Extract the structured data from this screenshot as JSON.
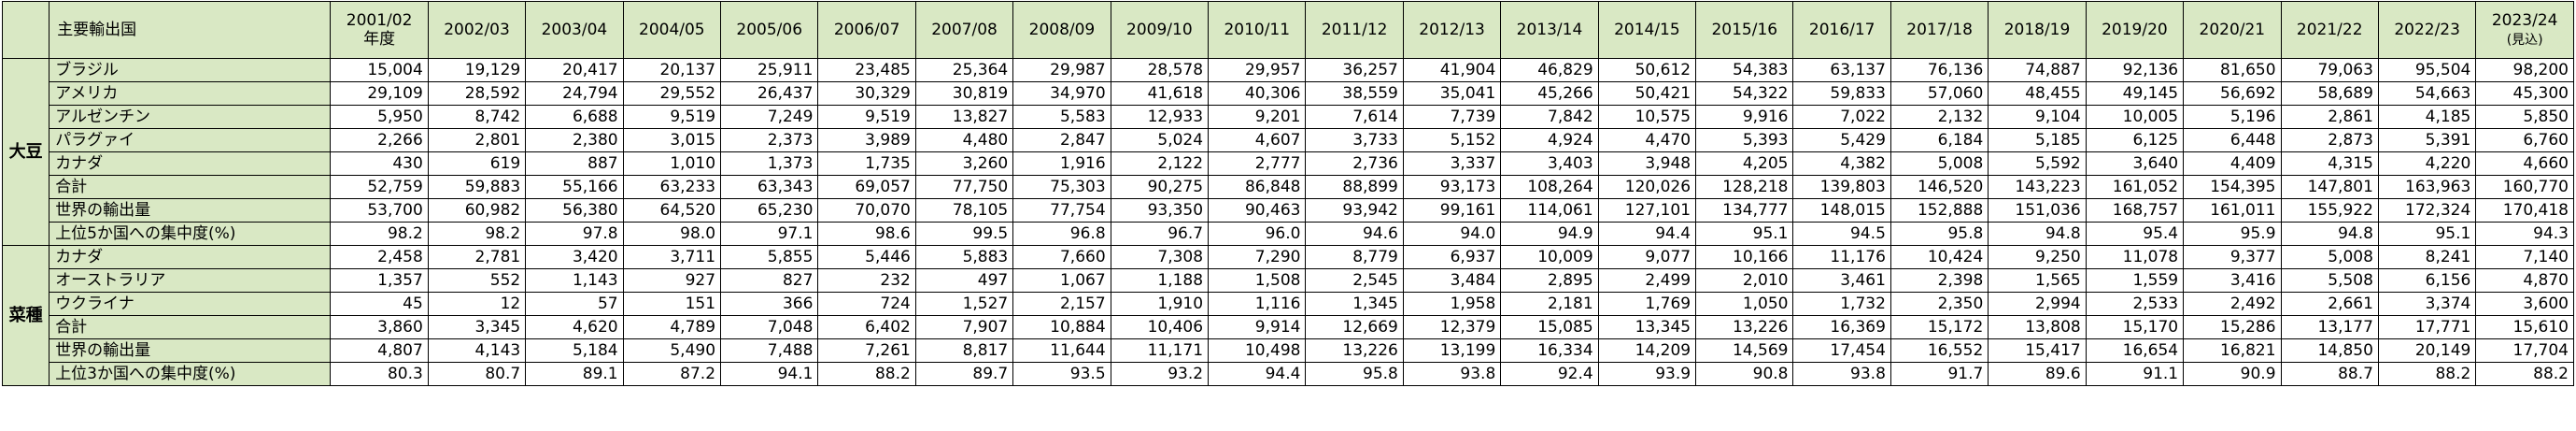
{
  "header": {
    "corner": "",
    "label": "主要輸出国",
    "years": [
      {
        "line1": "2001/02",
        "line2": "年度"
      },
      {
        "line1": "2002/03",
        "line2": ""
      },
      {
        "line1": "2003/04",
        "line2": ""
      },
      {
        "line1": "2004/05",
        "line2": ""
      },
      {
        "line1": "2005/06",
        "line2": ""
      },
      {
        "line1": "2006/07",
        "line2": ""
      },
      {
        "line1": "2007/08",
        "line2": ""
      },
      {
        "line1": "2008/09",
        "line2": ""
      },
      {
        "line1": "2009/10",
        "line2": ""
      },
      {
        "line1": "2010/11",
        "line2": ""
      },
      {
        "line1": "2011/12",
        "line2": ""
      },
      {
        "line1": "2012/13",
        "line2": ""
      },
      {
        "line1": "2013/14",
        "line2": ""
      },
      {
        "line1": "2014/15",
        "line2": ""
      },
      {
        "line1": "2015/16",
        "line2": ""
      },
      {
        "line1": "2016/17",
        "line2": ""
      },
      {
        "line1": "2017/18",
        "line2": ""
      },
      {
        "line1": "2018/19",
        "line2": ""
      },
      {
        "line1": "2019/20",
        "line2": ""
      },
      {
        "line1": "2020/21",
        "line2": ""
      },
      {
        "line1": "2021/22",
        "line2": ""
      },
      {
        "line1": "2022/23",
        "line2": ""
      },
      {
        "line1": "2023/24",
        "line2": "(見込)"
      }
    ]
  },
  "sections": [
    {
      "category": "大豆",
      "rows": [
        {
          "label": "ブラジル",
          "values": [
            "15,004",
            "19,129",
            "20,417",
            "20,137",
            "25,911",
            "23,485",
            "25,364",
            "29,987",
            "28,578",
            "29,957",
            "36,257",
            "41,904",
            "46,829",
            "50,612",
            "54,383",
            "63,137",
            "76,136",
            "74,887",
            "92,136",
            "81,650",
            "79,063",
            "95,504",
            "98,200"
          ]
        },
        {
          "label": "アメリカ",
          "values": [
            "29,109",
            "28,592",
            "24,794",
            "29,552",
            "26,437",
            "30,329",
            "30,819",
            "34,970",
            "41,618",
            "40,306",
            "38,559",
            "35,041",
            "45,266",
            "50,421",
            "54,322",
            "59,833",
            "57,060",
            "48,455",
            "49,145",
            "56,692",
            "58,689",
            "54,663",
            "45,300"
          ]
        },
        {
          "label": "アルゼンチン",
          "values": [
            "5,950",
            "8,742",
            "6,688",
            "9,519",
            "7,249",
            "9,519",
            "13,827",
            "5,583",
            "12,933",
            "9,201",
            "7,614",
            "7,739",
            "7,842",
            "10,575",
            "9,916",
            "7,022",
            "2,132",
            "9,104",
            "10,005",
            "5,196",
            "2,861",
            "4,185",
            "5,850"
          ]
        },
        {
          "label": "パラグァイ",
          "values": [
            "2,266",
            "2,801",
            "2,380",
            "3,015",
            "2,373",
            "3,989",
            "4,480",
            "2,847",
            "5,024",
            "4,607",
            "3,733",
            "5,152",
            "4,924",
            "4,470",
            "5,393",
            "5,429",
            "6,184",
            "5,185",
            "6,125",
            "6,448",
            "2,873",
            "5,391",
            "6,760"
          ]
        },
        {
          "label": "カナダ",
          "values": [
            "430",
            "619",
            "887",
            "1,010",
            "1,373",
            "1,735",
            "3,260",
            "1,916",
            "2,122",
            "2,777",
            "2,736",
            "3,337",
            "3,403",
            "3,948",
            "4,205",
            "4,382",
            "5,008",
            "5,592",
            "3,640",
            "4,409",
            "4,315",
            "4,220",
            "4,660"
          ]
        },
        {
          "label": "合計",
          "values": [
            "52,759",
            "59,883",
            "55,166",
            "63,233",
            "63,343",
            "69,057",
            "77,750",
            "75,303",
            "90,275",
            "86,848",
            "88,899",
            "93,173",
            "108,264",
            "120,026",
            "128,218",
            "139,803",
            "146,520",
            "143,223",
            "161,052",
            "154,395",
            "147,801",
            "163,963",
            "160,770"
          ]
        },
        {
          "label": "世界の輸出量",
          "values": [
            "53,700",
            "60,982",
            "56,380",
            "64,520",
            "65,230",
            "70,070",
            "78,105",
            "77,754",
            "93,350",
            "90,463",
            "93,942",
            "99,161",
            "114,061",
            "127,101",
            "134,777",
            "148,015",
            "152,888",
            "151,036",
            "168,757",
            "161,011",
            "155,922",
            "172,324",
            "170,418"
          ]
        },
        {
          "label": "上位5か国への集中度(%)",
          "values": [
            "98.2",
            "98.2",
            "97.8",
            "98.0",
            "97.1",
            "98.6",
            "99.5",
            "96.8",
            "96.7",
            "96.0",
            "94.6",
            "94.0",
            "94.9",
            "94.4",
            "95.1",
            "94.5",
            "95.8",
            "94.8",
            "95.4",
            "95.9",
            "94.8",
            "95.1",
            "94.3"
          ]
        }
      ]
    },
    {
      "category": "菜種",
      "rows": [
        {
          "label": "カナダ",
          "values": [
            "2,458",
            "2,781",
            "3,420",
            "3,711",
            "5,855",
            "5,446",
            "5,883",
            "7,660",
            "7,308",
            "7,290",
            "8,779",
            "6,937",
            "10,009",
            "9,077",
            "10,166",
            "11,176",
            "10,424",
            "9,250",
            "11,078",
            "9,377",
            "5,008",
            "8,241",
            "7,140"
          ]
        },
        {
          "label": "オーストラリア",
          "values": [
            "1,357",
            "552",
            "1,143",
            "927",
            "827",
            "232",
            "497",
            "1,067",
            "1,188",
            "1,508",
            "2,545",
            "3,484",
            "2,895",
            "2,499",
            "2,010",
            "3,461",
            "2,398",
            "1,565",
            "1,559",
            "3,416",
            "5,508",
            "6,156",
            "4,870"
          ]
        },
        {
          "label": "ウクライナ",
          "values": [
            "45",
            "12",
            "57",
            "151",
            "366",
            "724",
            "1,527",
            "2,157",
            "1,910",
            "1,116",
            "1,345",
            "1,958",
            "2,181",
            "1,769",
            "1,050",
            "1,732",
            "2,350",
            "2,994",
            "2,533",
            "2,492",
            "2,661",
            "3,374",
            "3,600"
          ]
        },
        {
          "label": "合計",
          "values": [
            "3,860",
            "3,345",
            "4,620",
            "4,789",
            "7,048",
            "6,402",
            "7,907",
            "10,884",
            "10,406",
            "9,914",
            "12,669",
            "12,379",
            "15,085",
            "13,345",
            "13,226",
            "16,369",
            "15,172",
            "13,808",
            "15,170",
            "15,286",
            "13,177",
            "17,771",
            "15,610"
          ]
        },
        {
          "label": "世界の輸出量",
          "values": [
            "4,807",
            "4,143",
            "5,184",
            "5,490",
            "7,488",
            "7,261",
            "8,817",
            "11,644",
            "11,171",
            "10,498",
            "13,226",
            "13,199",
            "16,334",
            "14,209",
            "14,569",
            "17,454",
            "16,552",
            "15,417",
            "16,654",
            "16,821",
            "14,850",
            "20,149",
            "17,704"
          ]
        },
        {
          "label": "上位3か国への集中度(%)",
          "values": [
            "80.3",
            "80.7",
            "89.1",
            "87.2",
            "94.1",
            "88.2",
            "89.7",
            "93.5",
            "93.2",
            "94.4",
            "95.8",
            "93.8",
            "92.4",
            "93.9",
            "90.8",
            "93.8",
            "91.7",
            "89.6",
            "91.1",
            "90.9",
            "88.7",
            "88.2",
            "88.2"
          ]
        }
      ]
    }
  ]
}
